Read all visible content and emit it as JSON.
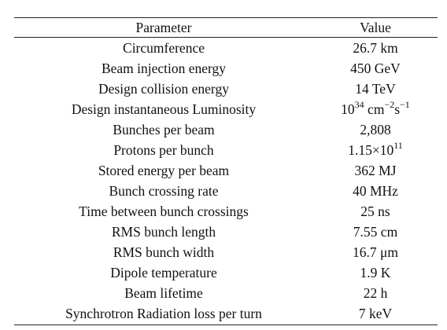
{
  "table": {
    "header": [
      "Parameter",
      "Value"
    ],
    "rows": [
      [
        "Circumference",
        "26.7 km"
      ],
      [
        "Beam injection energy",
        "450 GeV"
      ],
      [
        "Design collision energy",
        "14 TeV"
      ],
      [
        "Design instantaneous Luminosity",
        [
          {
            "text": "10"
          },
          {
            "sup": "34"
          },
          {
            "text": " cm"
          },
          {
            "sup": "−2"
          },
          {
            "text": "s"
          },
          {
            "sup": "−1"
          }
        ]
      ],
      [
        "Bunches per beam",
        "2,808"
      ],
      [
        "Protons per bunch",
        [
          {
            "text": "1.15×10"
          },
          {
            "sup": "11"
          }
        ]
      ],
      [
        "Stored energy per beam",
        "362 MJ"
      ],
      [
        "Bunch crossing rate",
        "40 MHz"
      ],
      [
        "Time between bunch crossings",
        "25 ns"
      ],
      [
        "RMS bunch length",
        "7.55 cm"
      ],
      [
        "RMS bunch width",
        "16.7 μm"
      ],
      [
        "Dipole temperature",
        "1.9 K"
      ],
      [
        "Beam lifetime",
        "22 h"
      ],
      [
        "Synchrotron Radiation loss per turn",
        "7 keV"
      ]
    ]
  }
}
